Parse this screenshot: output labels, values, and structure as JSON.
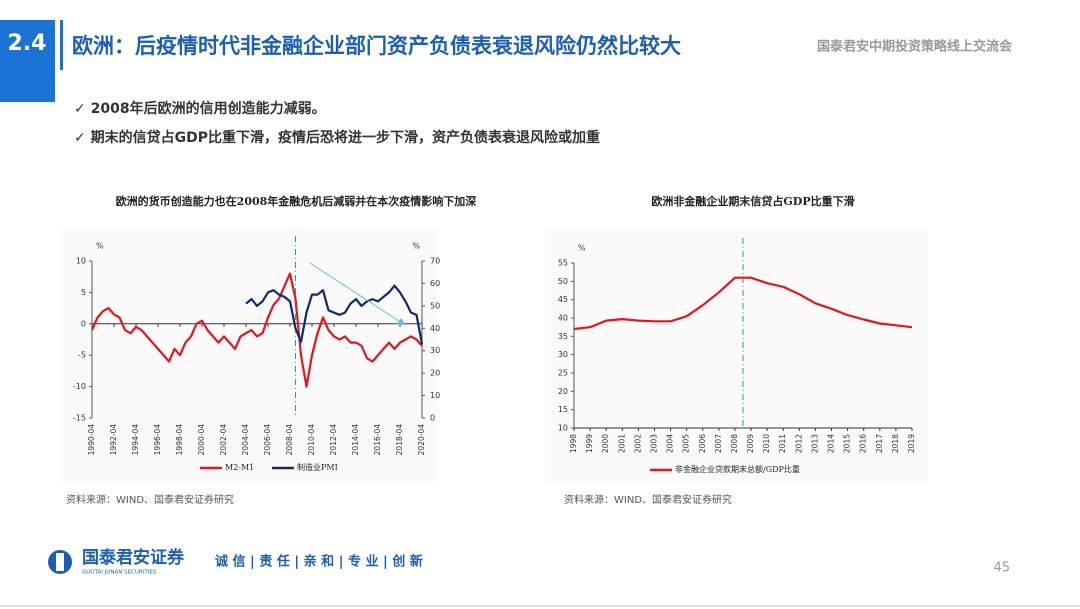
{
  "header": {
    "section": "2.4",
    "title": "欧洲：后疫情时代非金融企业部门资产负债表衰退风险仍然比较大",
    "event": "国泰君安中期投资策略线上交流会"
  },
  "bullets": [
    "✓ 2008年后欧洲的信用创造能力减弱。",
    "✓ 期末的信贷占GDP比重下滑，疫情后恐将进一步下滑，资产负债表衰退风险或加重"
  ],
  "chart_data": [
    {
      "type": "line",
      "title": "欧洲的货币创造能力也在2008年金融危机后减弱并在本次疫情影响下加深",
      "categories": [
        "1990-04",
        null,
        null,
        null,
        "1992-04",
        null,
        null,
        null,
        "1994-04",
        null,
        null,
        null,
        "1996-04",
        null,
        null,
        null,
        "1998-04",
        null,
        null,
        null,
        "2000-04",
        null,
        null,
        null,
        "2002-04",
        null,
        null,
        null,
        "2004-04",
        null,
        null,
        null,
        "2006-04",
        null,
        null,
        null,
        "2008-04",
        null,
        null,
        null,
        "2010-04",
        null,
        null,
        null,
        "2012-04",
        null,
        null,
        null,
        "2014-04",
        null,
        null,
        null,
        "2016-04",
        null,
        null,
        null,
        "2018-04",
        null,
        null,
        null,
        "2020-04"
      ],
      "y_unit": "%",
      "y2_unit": "%",
      "ylim": [
        -15,
        10
      ],
      "yticks": [
        -15,
        -10,
        -5,
        0,
        5,
        10
      ],
      "y2lim": [
        0,
        70
      ],
      "y2ticks": [
        0,
        10,
        20,
        30,
        40,
        50,
        60,
        70
      ],
      "series": [
        {
          "name": "M2-M1",
          "color": "#e8141b",
          "values": [
            -1,
            1,
            2,
            2.5,
            1.5,
            1,
            -1,
            -1.5,
            -0.5,
            -1,
            -2,
            -3,
            -4,
            -5,
            -6,
            -4,
            -5,
            -3,
            -2,
            0,
            0.5,
            -1,
            -2,
            -3,
            -2,
            -3,
            -4,
            -2,
            -1.5,
            -1,
            -2,
            -1.5,
            1,
            3,
            4,
            6,
            8,
            4,
            -5,
            -10,
            -5,
            -1.5,
            1,
            -1,
            -2,
            -2.5,
            -2,
            -3,
            -3,
            -3.5,
            -5.5,
            -6,
            -5,
            -4,
            -3,
            -4,
            -3,
            -2.5,
            -2,
            -2.5,
            -3.5
          ]
        },
        {
          "name": "制造业PMI",
          "color": "#0f2a6b",
          "axis": "y2",
          "values": [
            null,
            null,
            null,
            null,
            null,
            null,
            null,
            null,
            null,
            null,
            null,
            null,
            null,
            null,
            null,
            null,
            null,
            null,
            null,
            null,
            null,
            null,
            null,
            null,
            null,
            null,
            null,
            null,
            51,
            53,
            50,
            52,
            56,
            57,
            55,
            54,
            52,
            40,
            34,
            47,
            55,
            55,
            57,
            48,
            47,
            46,
            47,
            51,
            53,
            50,
            52,
            53,
            52,
            54,
            56,
            59,
            56,
            52,
            47,
            46,
            33
          ]
        }
      ]
    },
    {
      "type": "line",
      "title": "欧洲非金融企业期末信贷占GDP比重下滑",
      "categories": [
        "1998",
        "1999",
        "2000",
        "2001",
        "2002",
        "2003",
        "2004",
        "2005",
        "2006",
        "2007",
        "2008",
        "2009",
        "2010",
        "2011",
        "2012",
        "2013",
        "2014",
        "2015",
        "2016",
        "2017",
        "2018",
        "2019"
      ],
      "y_unit": "%",
      "ylim": [
        10,
        55
      ],
      "yticks": [
        10,
        15,
        20,
        25,
        30,
        35,
        40,
        45,
        50,
        55
      ],
      "series": [
        {
          "name": "非金融企业贷款期末总额/GDP比重",
          "color": "#e8141b",
          "values": [
            37,
            37.5,
            39.3,
            39.7,
            39.3,
            39.1,
            39.1,
            40.5,
            43.5,
            47,
            51,
            51,
            49.5,
            48.5,
            46.5,
            44,
            42.5,
            40.8,
            39.6,
            38.5,
            38,
            37.5
          ]
        }
      ]
    }
  ],
  "sources": [
    "资料来源：WIND、国泰君安证券研究",
    "资料来源：WIND、国泰君安证券研究"
  ],
  "footer": {
    "logo_cn": "国泰君安证券",
    "logo_en": "GUOTAI JUNAN SECURITIES",
    "slogan": "诚 信 | 责 任 | 亲 和 | 专 业 | 创 新",
    "page": "45"
  }
}
